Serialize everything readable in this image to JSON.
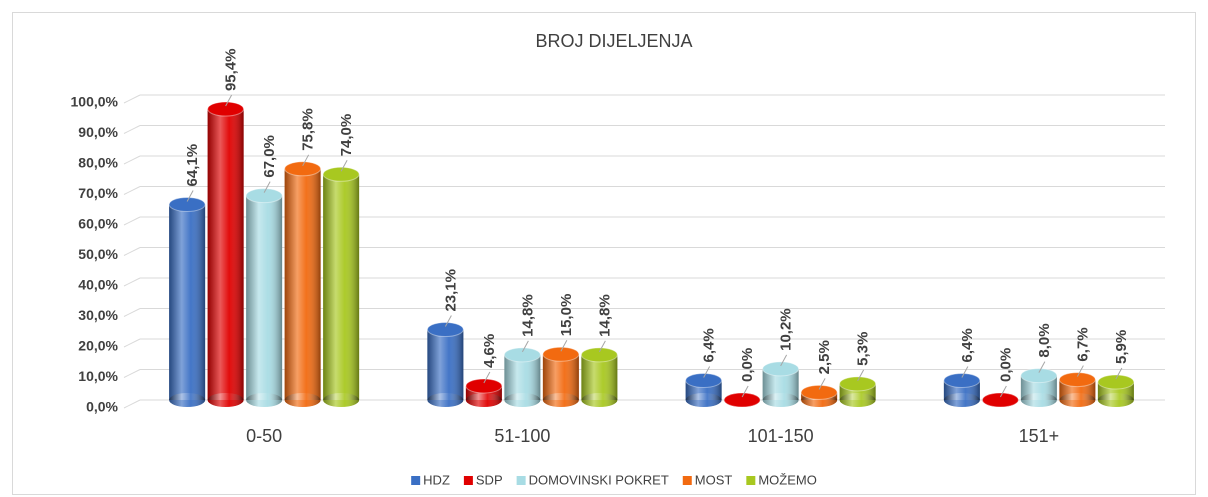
{
  "chart_data": {
    "type": "bar",
    "title": "BROJ DIJELJENJA",
    "categories": [
      "0-50",
      "51-100",
      "101-150",
      "151+"
    ],
    "series": [
      {
        "name": "HDZ",
        "color": "#3a6fc4",
        "values": [
          64.1,
          23.1,
          6.4,
          6.4
        ],
        "value_labels": [
          "64,1%",
          "23,1%",
          "6,4%",
          "6,4%"
        ]
      },
      {
        "name": "SDP",
        "color": "#e00000",
        "values": [
          95.4,
          4.6,
          0.0,
          0.0
        ],
        "value_labels": [
          "95,4%",
          "4,6%",
          "0,0%",
          "0,0%"
        ]
      },
      {
        "name": "DOMOVINSKI POKRET",
        "color": "#a8dce4",
        "values": [
          67.0,
          14.8,
          10.2,
          8.0
        ],
        "value_labels": [
          "67,0%",
          "14,8%",
          "10,2%",
          "8,0%"
        ]
      },
      {
        "name": "MOST",
        "color": "#f26a10",
        "values": [
          75.8,
          15.0,
          2.5,
          6.7
        ],
        "value_labels": [
          "75,8%",
          "15,0%",
          "2,5%",
          "6,7%"
        ]
      },
      {
        "name": "MOŽEMO",
        "color": "#a8c820",
        "values": [
          74.0,
          14.8,
          5.3,
          5.9
        ],
        "value_labels": [
          "74,0%",
          "14,8%",
          "5,3%",
          "5,9%"
        ]
      }
    ],
    "ylim": [
      0,
      100
    ],
    "yticks": [
      {
        "value": 0,
        "label": "0,0%"
      },
      {
        "value": 10,
        "label": "10,0%"
      },
      {
        "value": 20,
        "label": "20,0%"
      },
      {
        "value": 30,
        "label": "30,0%"
      },
      {
        "value": 40,
        "label": "40,0%"
      },
      {
        "value": 50,
        "label": "50,0%"
      },
      {
        "value": 60,
        "label": "60,0%"
      },
      {
        "value": 70,
        "label": "70,0%"
      },
      {
        "value": 80,
        "label": "80,0%"
      },
      {
        "value": 90,
        "label": "90,0%"
      },
      {
        "value": 100,
        "label": "100,0%"
      }
    ],
    "grid": true,
    "legend": "bottom"
  }
}
